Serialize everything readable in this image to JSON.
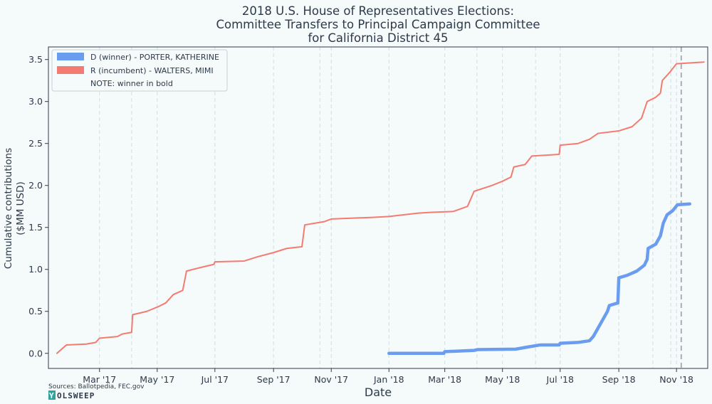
{
  "chart_data": {
    "type": "line",
    "title": [
      "2018 U.S. House of Representatives Elections:",
      "Committee Transfers to Principal Campaign Committee",
      "for California District 45"
    ],
    "xlabel": "Date",
    "ylabel": [
      "Cumulative contributions",
      "($MM USD)"
    ],
    "ylim": [
      -0.18,
      3.65
    ],
    "yticks": [
      0.0,
      0.5,
      1.0,
      1.5,
      2.0,
      2.5,
      3.0,
      3.5
    ],
    "ytick_labels": [
      "0.0",
      "0.5",
      "1.0",
      "1.5",
      "2.0",
      "2.5",
      "3.0",
      "3.5"
    ],
    "xlim": [
      "2017-01-06",
      "2018-12-04"
    ],
    "xticks": [
      "2017-03-01",
      "2017-05-01",
      "2017-07-01",
      "2017-09-01",
      "2017-11-01",
      "2018-01-01",
      "2018-03-01",
      "2018-05-01",
      "2018-07-01",
      "2018-09-01",
      "2018-11-01"
    ],
    "xtick_labels": [
      "Mar '17",
      "May '17",
      "Jul '17",
      "Sep '17",
      "Nov '17",
      "Jan '18",
      "Mar '18",
      "May '18",
      "Jul '18",
      "Sep '18",
      "Nov '18"
    ],
    "vgrid_dates": [
      "2017-04-04",
      "2017-10-20",
      "2018-04-04",
      "2018-06-05",
      "2018-10-07",
      "2018-10-26"
    ],
    "election_date": "2018-11-06",
    "grid": "vertical dashed",
    "legend_position": "top-left",
    "series": [
      {
        "name": "D (winner) - PORTER, KATHERINE",
        "color": "#6a9df0",
        "bold": true,
        "points": [
          [
            "2018-01-01",
            0.0
          ],
          [
            "2018-02-28",
            0.0
          ],
          [
            "2018-03-01",
            0.02
          ],
          [
            "2018-04-01",
            0.035
          ],
          [
            "2018-04-05",
            0.045
          ],
          [
            "2018-05-15",
            0.05
          ],
          [
            "2018-05-25",
            0.07
          ],
          [
            "2018-06-10",
            0.1
          ],
          [
            "2018-06-30",
            0.1
          ],
          [
            "2018-07-01",
            0.12
          ],
          [
            "2018-07-20",
            0.13
          ],
          [
            "2018-08-01",
            0.15
          ],
          [
            "2018-08-05",
            0.2
          ],
          [
            "2018-08-10",
            0.3
          ],
          [
            "2018-08-15",
            0.4
          ],
          [
            "2018-08-20",
            0.5
          ],
          [
            "2018-08-22",
            0.57
          ],
          [
            "2018-08-31",
            0.6
          ],
          [
            "2018-09-01",
            0.9
          ],
          [
            "2018-09-10",
            0.93
          ],
          [
            "2018-09-20",
            0.98
          ],
          [
            "2018-09-28",
            1.05
          ],
          [
            "2018-10-01",
            1.12
          ],
          [
            "2018-10-02",
            1.25
          ],
          [
            "2018-10-10",
            1.3
          ],
          [
            "2018-10-15",
            1.4
          ],
          [
            "2018-10-18",
            1.55
          ],
          [
            "2018-10-22",
            1.65
          ],
          [
            "2018-10-28",
            1.7
          ],
          [
            "2018-11-02",
            1.77
          ],
          [
            "2018-11-15",
            1.78
          ]
        ]
      },
      {
        "name": "R (incumbent) - WALTERS, MIMI",
        "color": "#f47b72",
        "bold": false,
        "points": [
          [
            "2017-01-15",
            0.0
          ],
          [
            "2017-01-25",
            0.1
          ],
          [
            "2017-02-15",
            0.11
          ],
          [
            "2017-02-25",
            0.13
          ],
          [
            "2017-03-01",
            0.18
          ],
          [
            "2017-03-20",
            0.2
          ],
          [
            "2017-03-25",
            0.23
          ],
          [
            "2017-04-04",
            0.25
          ],
          [
            "2017-04-05",
            0.46
          ],
          [
            "2017-04-20",
            0.5
          ],
          [
            "2017-05-01",
            0.55
          ],
          [
            "2017-05-10",
            0.6
          ],
          [
            "2017-05-18",
            0.7
          ],
          [
            "2017-05-28",
            0.75
          ],
          [
            "2017-06-01",
            0.98
          ],
          [
            "2017-06-15",
            1.02
          ],
          [
            "2017-06-30",
            1.06
          ],
          [
            "2017-07-01",
            1.09
          ],
          [
            "2017-08-01",
            1.1
          ],
          [
            "2017-08-15",
            1.15
          ],
          [
            "2017-09-01",
            1.2
          ],
          [
            "2017-09-15",
            1.25
          ],
          [
            "2017-10-01",
            1.27
          ],
          [
            "2017-10-04",
            1.53
          ],
          [
            "2017-10-25",
            1.57
          ],
          [
            "2017-11-01",
            1.6
          ],
          [
            "2017-12-15",
            1.62
          ],
          [
            "2018-01-01",
            1.63
          ],
          [
            "2018-02-01",
            1.67
          ],
          [
            "2018-02-15",
            1.68
          ],
          [
            "2018-03-10",
            1.69
          ],
          [
            "2018-03-25",
            1.75
          ],
          [
            "2018-04-01",
            1.93
          ],
          [
            "2018-04-20",
            2.0
          ],
          [
            "2018-05-01",
            2.05
          ],
          [
            "2018-05-10",
            2.1
          ],
          [
            "2018-05-13",
            2.22
          ],
          [
            "2018-05-25",
            2.25
          ],
          [
            "2018-06-01",
            2.35
          ],
          [
            "2018-06-30",
            2.37
          ],
          [
            "2018-07-01",
            2.48
          ],
          [
            "2018-07-20",
            2.5
          ],
          [
            "2018-08-01",
            2.55
          ],
          [
            "2018-08-10",
            2.62
          ],
          [
            "2018-09-01",
            2.65
          ],
          [
            "2018-09-15",
            2.7
          ],
          [
            "2018-09-25",
            2.8
          ],
          [
            "2018-10-01",
            3.0
          ],
          [
            "2018-10-10",
            3.05
          ],
          [
            "2018-10-15",
            3.1
          ],
          [
            "2018-10-17",
            3.25
          ],
          [
            "2018-10-25",
            3.35
          ],
          [
            "2018-11-01",
            3.45
          ],
          [
            "2018-11-30",
            3.47
          ]
        ]
      }
    ],
    "legend_note": "NOTE: winner in bold"
  },
  "footer": {
    "sources": "Sources: Ballotpedia, FEC.gov",
    "logo_initial": "Y",
    "logo_rest": "OLSWEEP"
  }
}
